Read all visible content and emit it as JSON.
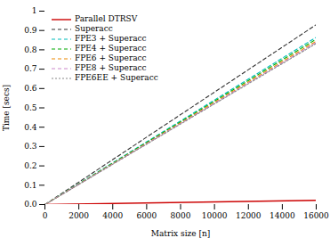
{
  "chart_data": {
    "type": "line",
    "xlabel": "Matrix size [n]",
    "ylabel": "Time [secs]",
    "x": [
      0,
      16000
    ],
    "xlim": [
      0,
      16000
    ],
    "xticks": [
      0,
      2000,
      4000,
      6000,
      8000,
      10000,
      12000,
      14000,
      16000
    ],
    "ylim": [
      0,
      1.0
    ],
    "yticks": [
      {
        "value": 0,
        "label": "0.0"
      },
      0.1,
      0.2,
      0.3,
      0.4,
      0.5,
      0.6,
      0.7,
      0.8,
      0.9,
      1
    ],
    "grid": false,
    "legend": "upper left",
    "series": [
      {
        "name": "Parallel DTRSV",
        "color": "#cc0000",
        "line_style": "solid",
        "values": [
          0.0,
          0.022
        ]
      },
      {
        "name": "Superacc",
        "color": "#333333",
        "line_style": "dashed",
        "values": [
          0.0,
          0.93
        ]
      },
      {
        "name": "FPE3 + Superacc",
        "color": "#00bbbb",
        "line_style": "dashed",
        "values": [
          0.0,
          0.865
        ]
      },
      {
        "name": "FPE4 + Superacc",
        "color": "#00aa00",
        "line_style": "dashed",
        "values": [
          0.0,
          0.855
        ]
      },
      {
        "name": "FPE6 + Superacc",
        "color": "#ee8800",
        "line_style": "dashed",
        "values": [
          0.0,
          0.845
        ]
      },
      {
        "name": "FPE8 + Superacc",
        "color": "#cc88cc",
        "line_style": "dashed",
        "values": [
          0.0,
          0.838
        ]
      },
      {
        "name": "FPE6EE + Superacc",
        "color": "#888888",
        "line_style": "dotted",
        "values": [
          0.0,
          0.833
        ]
      }
    ]
  }
}
